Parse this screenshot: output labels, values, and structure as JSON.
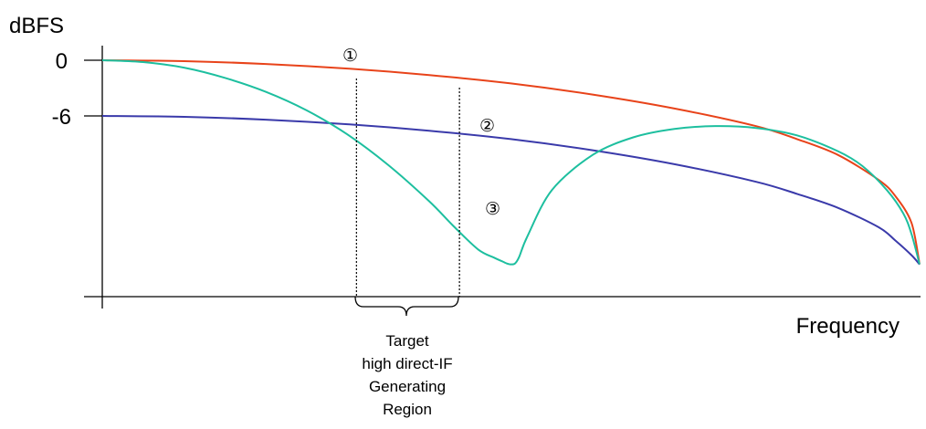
{
  "chart_data": {
    "type": "line",
    "ylabel": "dBFS",
    "xlabel": "Frequency",
    "y_ticks": [
      {
        "value": 0,
        "label": "0"
      },
      {
        "value": -6,
        "label": "-6"
      }
    ],
    "xlim": [
      0,
      1
    ],
    "ylim": [
      -22,
      0
    ],
    "grid": false,
    "legend": "none",
    "series": [
      {
        "marker_label": "①",
        "color": "#e8431a",
        "x": [
          0.0,
          0.1,
          0.2,
          0.3,
          0.4,
          0.5,
          0.6,
          0.7,
          0.8,
          0.85,
          0.9,
          0.95,
          0.97,
          0.99,
          1.0
        ],
        "y": [
          0.0,
          -0.1,
          -0.4,
          -0.9,
          -1.6,
          -2.5,
          -3.7,
          -5.2,
          -7.1,
          -8.5,
          -10.2,
          -12.9,
          -14.6,
          -17.5,
          -22.0
        ]
      },
      {
        "marker_label": "②",
        "color": "#3a3aaa",
        "x": [
          0.0,
          0.1,
          0.2,
          0.3,
          0.4,
          0.5,
          0.6,
          0.7,
          0.8,
          0.85,
          0.9,
          0.95,
          0.97,
          0.99,
          1.0
        ],
        "y": [
          -6.0,
          -6.1,
          -6.4,
          -6.9,
          -7.6,
          -8.5,
          -9.7,
          -11.2,
          -13.1,
          -14.4,
          -15.9,
          -18.0,
          -19.4,
          -21.0,
          -22.0
        ]
      },
      {
        "marker_label": "③",
        "color": "#1dbf9f",
        "x": [
          0.0,
          0.05,
          0.1,
          0.15,
          0.2,
          0.25,
          0.3,
          0.35,
          0.4,
          0.43,
          0.46,
          0.48,
          0.49,
          0.495,
          0.5,
          0.505,
          0.51,
          0.52,
          0.55,
          0.6,
          0.65,
          0.7,
          0.75,
          0.8,
          0.85,
          0.9,
          0.93,
          0.96,
          0.98,
          0.99,
          1.0
        ],
        "y": [
          0.0,
          -0.2,
          -0.8,
          -1.9,
          -3.4,
          -5.4,
          -8.0,
          -11.3,
          -15.2,
          -17.9,
          -20.4,
          -21.3,
          -21.7,
          -21.9,
          -22.0,
          -21.9,
          -21.2,
          -19.0,
          -14.0,
          -10.2,
          -8.3,
          -7.4,
          -7.1,
          -7.3,
          -8.1,
          -9.8,
          -11.4,
          -14.0,
          -16.5,
          -18.7,
          -22.0
        ]
      }
    ],
    "annotations": [
      {
        "x": 0.31,
        "y": -6.2,
        "text": "①"
      },
      {
        "x": 0.48,
        "y": -20.0,
        "text": "②"
      },
      {
        "x": 0.49,
        "y": -21.5,
        "text": "③"
      }
    ],
    "region": {
      "x_start": 0.311,
      "x_end": 0.437,
      "lines": [
        "Target",
        "high direct-IF",
        "Generating",
        "Region"
      ]
    }
  }
}
